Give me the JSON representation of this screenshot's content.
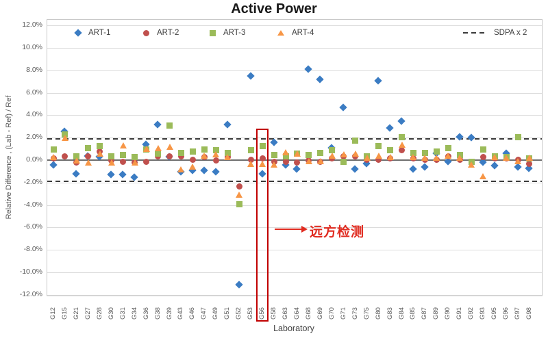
{
  "header": {
    "title": "Active Power"
  },
  "chart_data": {
    "type": "scatter",
    "title": "Active Power",
    "xlabel": "Laboratory",
    "ylabel": "Relative Difference , (Lab - Ref) / Ref",
    "ylim": [
      -12,
      12
    ],
    "ytick_step": 2,
    "ytick_format": "percent_one_decimal",
    "grid": true,
    "legend_position": "top-inside",
    "categories": [
      "G12",
      "G15",
      "G21",
      "G27",
      "G28",
      "G30",
      "G31",
      "G34",
      "G36",
      "G38",
      "G39",
      "G43",
      "G46",
      "G47",
      "G49",
      "G51",
      "G52",
      "G53",
      "G56",
      "G58",
      "G63",
      "G64",
      "G68",
      "G69",
      "G70",
      "G71",
      "G73",
      "G75",
      "G80",
      "G83",
      "G84",
      "G85",
      "G87",
      "G89",
      "G90",
      "G91",
      "G92",
      "G93",
      "G95",
      "G96",
      "G97",
      "G98"
    ],
    "series": [
      {
        "name": "ART-1",
        "marker": "diamond",
        "color": "#3B7CC3",
        "values": [
          -0.5,
          2.5,
          -1.3,
          0.3,
          0.2,
          -1.4,
          -1.4,
          -1.6,
          1.3,
          3.1,
          0.2,
          -1.1,
          -1.0,
          -1.0,
          -1.1,
          3.1,
          -11.2,
          7.4,
          -1.3,
          1.5,
          -0.5,
          -0.9,
          8.0,
          7.1,
          1.0,
          4.6,
          -0.9,
          -0.4,
          7.0,
          2.8,
          3.4,
          -0.9,
          -0.7,
          0.5,
          -0.2,
          2.0,
          1.9,
          -0.3,
          -0.6,
          0.5,
          -0.7,
          -0.8
        ]
      },
      {
        "name": "ART-2",
        "marker": "circle",
        "color": "#C0504D",
        "values": [
          0.1,
          0.3,
          -0.3,
          0.3,
          0.7,
          -0.1,
          -0.2,
          -0.3,
          -0.2,
          0.3,
          0.3,
          0.3,
          0.0,
          0.2,
          -0.1,
          0.2,
          -2.4,
          0.0,
          0.1,
          -0.2,
          -0.2,
          -0.3,
          -0.1,
          -0.2,
          0.1,
          0.3,
          0.3,
          0.0,
          0.0,
          0.1,
          0.8,
          0.1,
          0.0,
          0.0,
          0.3,
          0.0,
          -0.3,
          0.2,
          0.1,
          0.1,
          0.0,
          -0.4
        ]
      },
      {
        "name": "ART-3",
        "marker": "square",
        "color": "#9BBB59",
        "values": [
          0.9,
          2.2,
          0.3,
          1.0,
          1.2,
          0.3,
          0.4,
          0.2,
          0.9,
          0.5,
          3.0,
          0.6,
          0.7,
          0.9,
          0.8,
          0.6,
          -4.0,
          0.8,
          1.2,
          0.4,
          0.3,
          0.5,
          0.4,
          0.6,
          0.8,
          -0.2,
          1.7,
          0.3,
          1.2,
          0.8,
          2.0,
          0.6,
          0.6,
          0.7,
          1.0,
          0.4,
          -0.2,
          0.9,
          0.3,
          0.2,
          2.0,
          0.1
        ]
      },
      {
        "name": "ART-4",
        "marker": "triangle",
        "color": "#F79646",
        "values": [
          0.2,
          1.9,
          -0.1,
          -0.3,
          0.5,
          -0.3,
          1.2,
          -0.3,
          0.9,
          1.0,
          1.1,
          -0.9,
          -0.7,
          0.3,
          0.4,
          0.2,
          -3.2,
          -0.4,
          -0.4,
          -0.5,
          0.6,
          0.5,
          -0.2,
          -0.2,
          0.3,
          0.4,
          0.5,
          0.1,
          0.3,
          0.2,
          1.3,
          0.2,
          0.1,
          0.1,
          0.3,
          0.1,
          -0.5,
          -1.5,
          0.2,
          0.1,
          -0.2,
          0.1
        ]
      }
    ],
    "reference_lines": {
      "name": "SDPA x 2",
      "style": "dashed",
      "color": "#3a3a3a",
      "values": [
        1.9,
        -1.9
      ]
    },
    "zero_line": true,
    "highlight": {
      "category": "G56",
      "label": "远方检测"
    }
  }
}
